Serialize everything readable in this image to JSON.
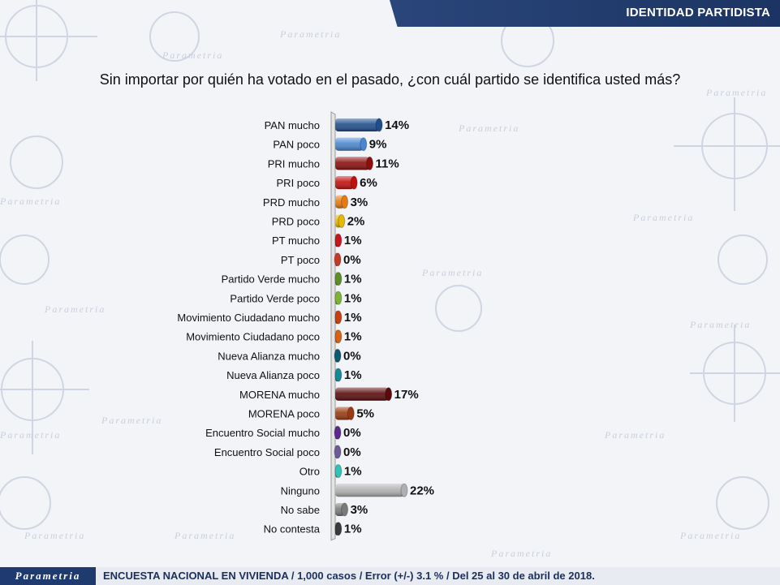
{
  "header": {
    "title": "IDENTIDAD PARTIDISTA"
  },
  "watermark": {
    "word": "Parametria"
  },
  "question": "Sin importar por quién ha votado en el pasado, ¿con cuál partido se identifica usted más?",
  "footer": {
    "logo": "Parametria",
    "text": "ENCUESTA NACIONAL EN VIVIENDA / 1,000 casos / Error (+/-) 3.1 % / Del 25 al 30 de abril de 2018."
  },
  "chart_data": {
    "type": "bar",
    "orientation": "horizontal",
    "categories": [
      "PAN mucho",
      "PAN poco",
      "PRI mucho",
      "PRI poco",
      "PRD mucho",
      "PRD poco",
      "PT mucho",
      "PT poco",
      "Partido Verde mucho",
      "Partido Verde poco",
      "Movimiento Ciudadano mucho",
      "Movimiento Ciudadano poco",
      "Nueva Alianza mucho",
      "Nueva Alianza poco",
      "MORENA mucho",
      "MORENA poco",
      "Encuentro Social mucho",
      "Encuentro Social poco",
      "Otro",
      "Ninguno",
      "No sabe",
      "No contesta"
    ],
    "values": [
      14,
      9,
      11,
      6,
      3,
      2,
      1,
      0,
      1,
      1,
      1,
      1,
      0,
      1,
      17,
      5,
      0,
      0,
      1,
      22,
      3,
      1
    ],
    "labels": [
      "14%",
      "9%",
      "11%",
      "6%",
      "3%",
      "2%",
      "1%",
      "0%",
      "1%",
      "1%",
      "1%",
      "1%",
      "0%",
      "1%",
      "17%",
      "5%",
      "0%",
      "0%",
      "1%",
      "22%",
      "3%",
      "1%"
    ],
    "colors": [
      "#1f4e8c",
      "#4a86d0",
      "#8b0d0d",
      "#c40e0e",
      "#e87a12",
      "#e6b800",
      "#c8141a",
      "#c43a2a",
      "#5e8f26",
      "#7ab534",
      "#c8400e",
      "#d9620e",
      "#0d5a6e",
      "#138a95",
      "#5a0a0a",
      "#9a3a10",
      "#5a2a8c",
      "#6e5a96",
      "#2ec4b8",
      "#b0b0b0",
      "#7a7a7a",
      "#3a3a3a"
    ],
    "xlim": [
      0,
      22
    ],
    "grid": false,
    "legend": "none"
  }
}
